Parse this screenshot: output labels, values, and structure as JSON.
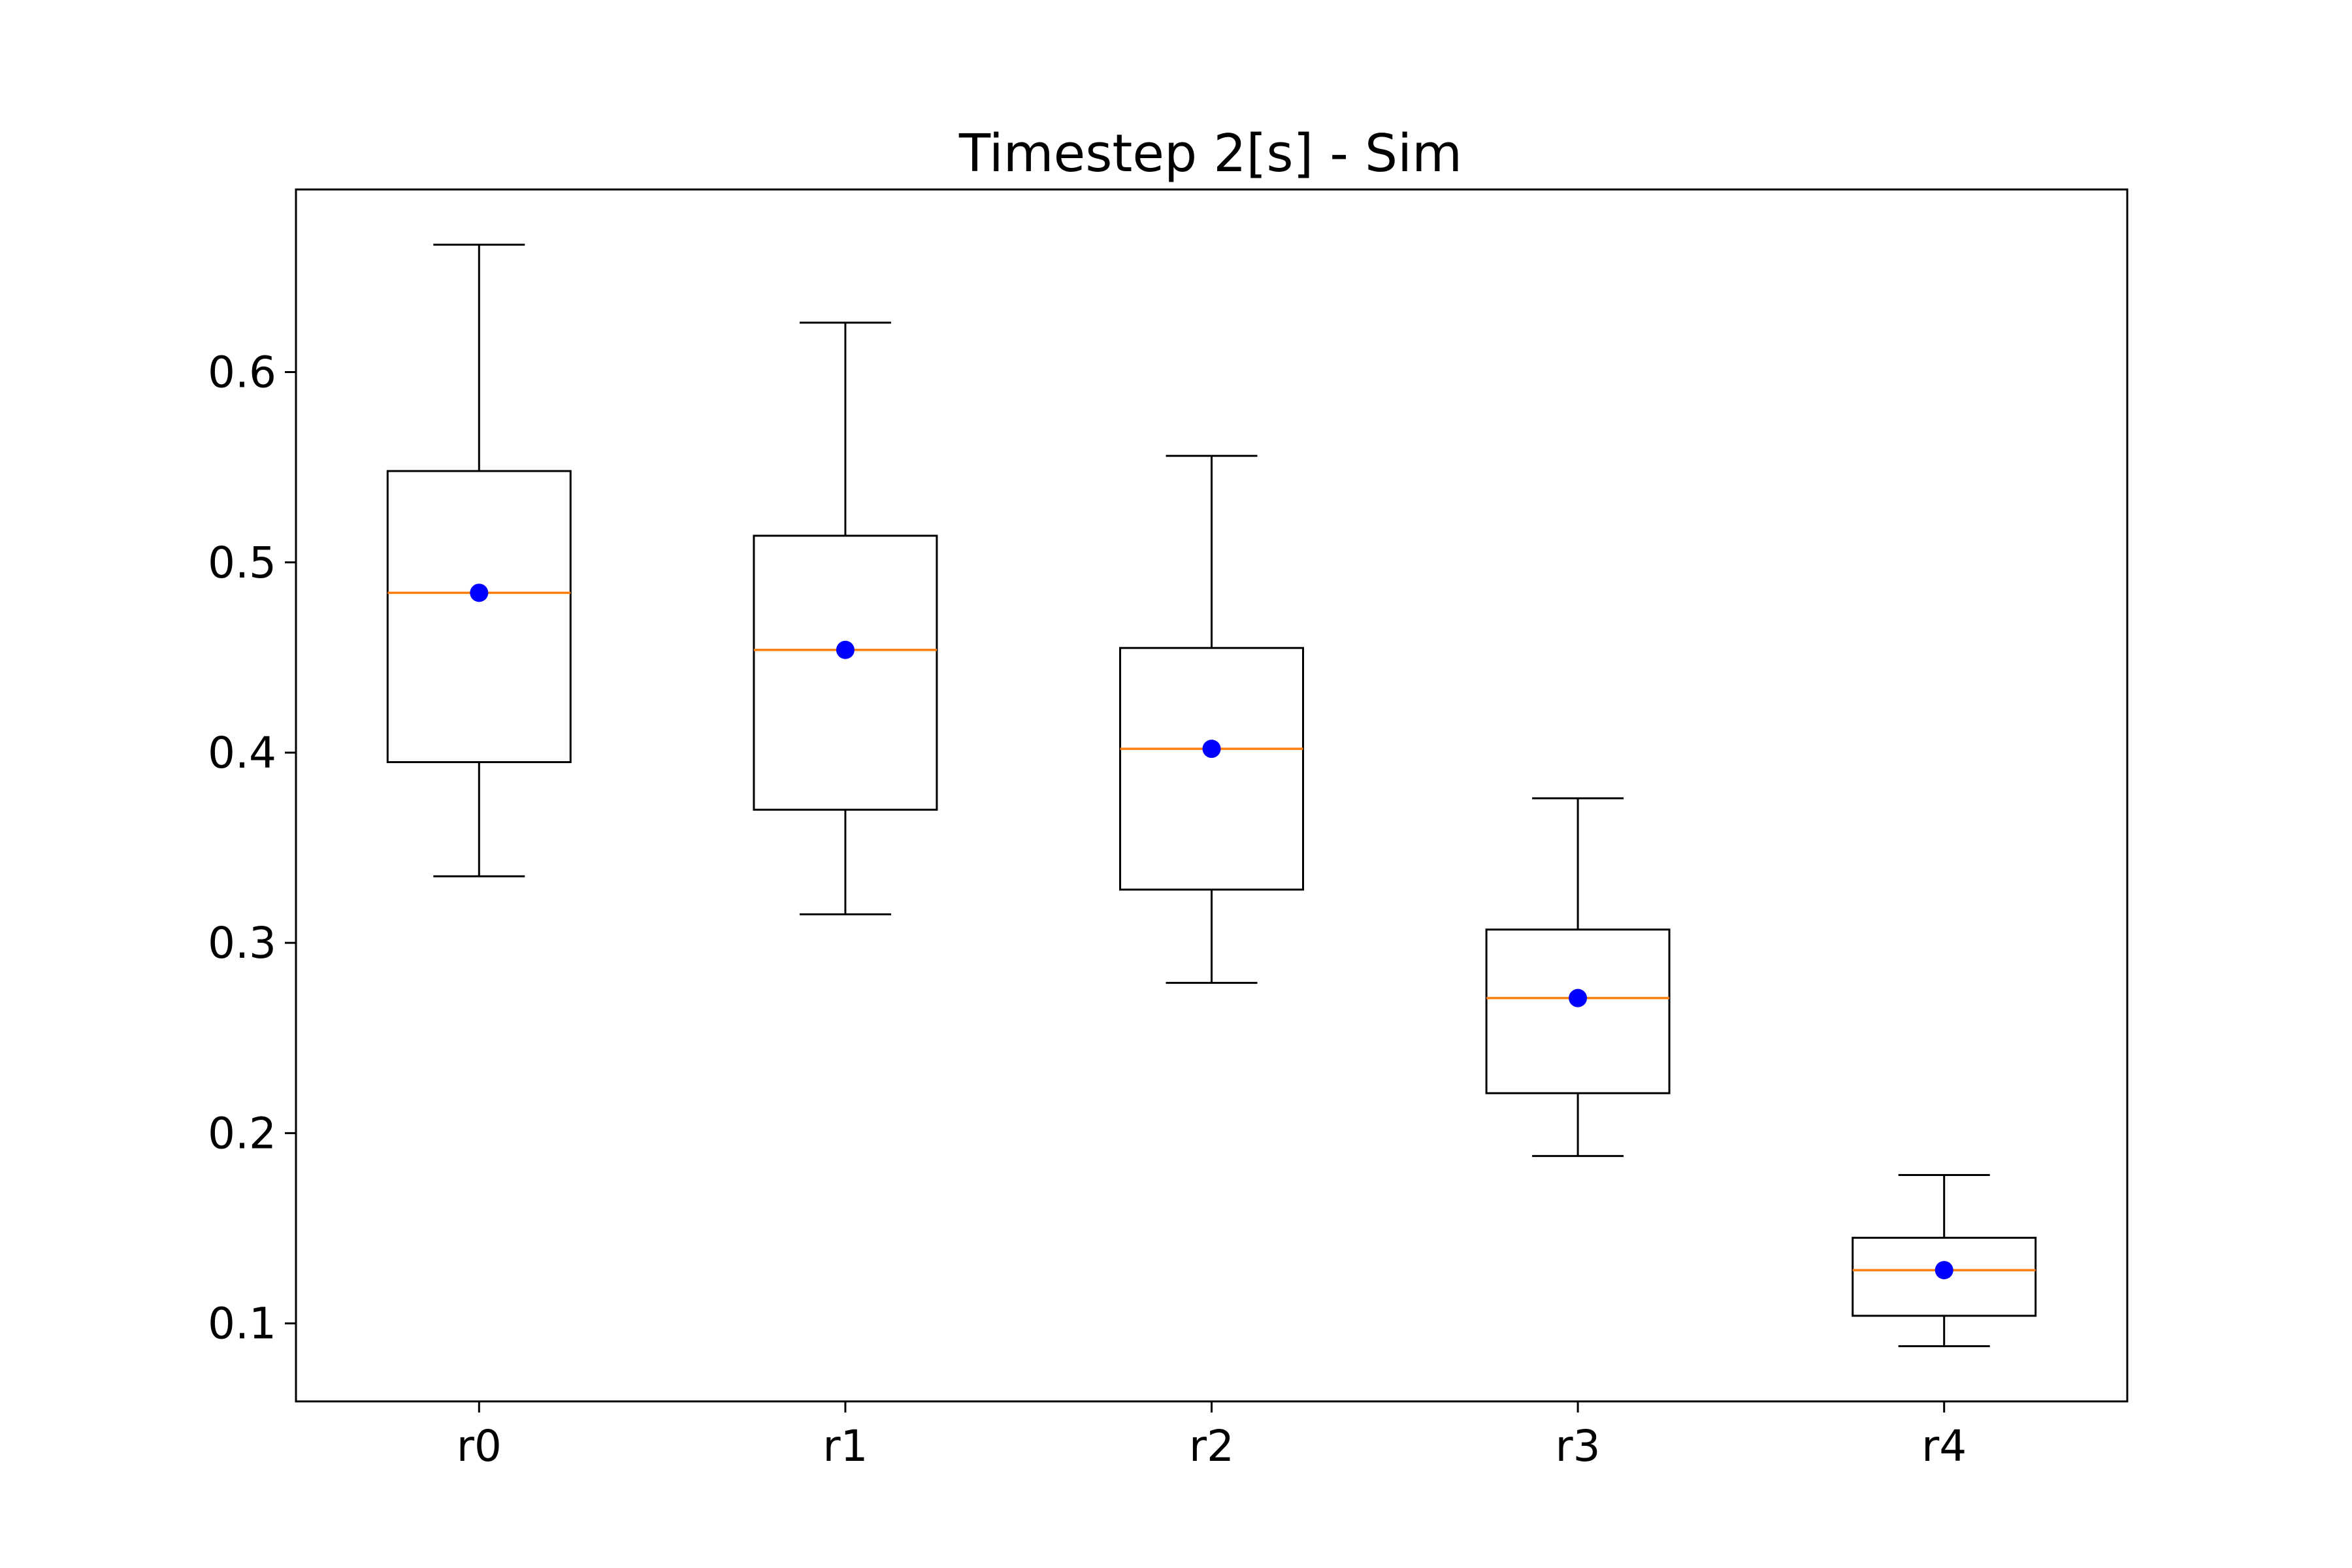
{
  "chart_data": {
    "type": "box",
    "title": "Timestep 2[s] - Sim",
    "xlabel": "",
    "ylabel": "",
    "categories": [
      "r0",
      "r1",
      "r2",
      "r3",
      "r4"
    ],
    "boxes": [
      {
        "label": "r0",
        "whisker_low": 0.335,
        "q1": 0.395,
        "median": 0.484,
        "mean": 0.484,
        "q3": 0.548,
        "whisker_high": 0.667
      },
      {
        "label": "r1",
        "whisker_low": 0.315,
        "q1": 0.37,
        "median": 0.454,
        "mean": 0.454,
        "q3": 0.514,
        "whisker_high": 0.626
      },
      {
        "label": "r2",
        "whisker_low": 0.279,
        "q1": 0.328,
        "median": 0.402,
        "mean": 0.402,
        "q3": 0.455,
        "whisker_high": 0.556
      },
      {
        "label": "r3",
        "whisker_low": 0.188,
        "q1": 0.221,
        "median": 0.271,
        "mean": 0.271,
        "q3": 0.307,
        "whisker_high": 0.376
      },
      {
        "label": "r4",
        "whisker_low": 0.088,
        "q1": 0.104,
        "median": 0.128,
        "mean": 0.128,
        "q3": 0.145,
        "whisker_high": 0.178
      }
    ],
    "yticks": [
      "0.1",
      "0.2",
      "0.3",
      "0.4",
      "0.5",
      "0.6"
    ],
    "ylim": [
      0.059,
      0.696
    ],
    "grid": false,
    "legend": "none",
    "colors": {
      "box": "#000000",
      "median": "#ff7f0e",
      "mean": "#0000ff"
    }
  }
}
